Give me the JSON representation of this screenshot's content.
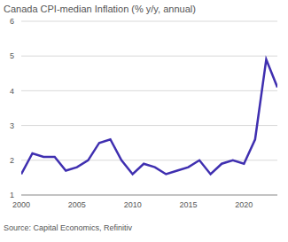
{
  "chart_data": {
    "type": "line",
    "title": "Canada CPI-median Inflation (% y/y, annual)",
    "source": "Source: Capital Economics, Refinitiv",
    "x": [
      2000,
      2001,
      2002,
      2003,
      2004,
      2005,
      2006,
      2007,
      2008,
      2009,
      2010,
      2011,
      2012,
      2013,
      2014,
      2015,
      2016,
      2017,
      2018,
      2019,
      2020,
      2021,
      2022,
      2023
    ],
    "values": [
      1.6,
      2.2,
      2.1,
      2.1,
      1.7,
      1.8,
      2.0,
      2.5,
      2.6,
      2.0,
      1.6,
      1.9,
      1.8,
      1.6,
      1.7,
      1.8,
      2.0,
      1.6,
      1.9,
      2.0,
      1.9,
      2.6,
      4.9,
      4.1
    ],
    "color": "#3f2fb0",
    "xlim": [
      2000,
      2023
    ],
    "xticks": [
      2000,
      2005,
      2010,
      2015,
      2020
    ],
    "ylim": [
      1,
      6
    ],
    "yticks": [
      1,
      2,
      3,
      4,
      5,
      6
    ],
    "grid": true
  }
}
